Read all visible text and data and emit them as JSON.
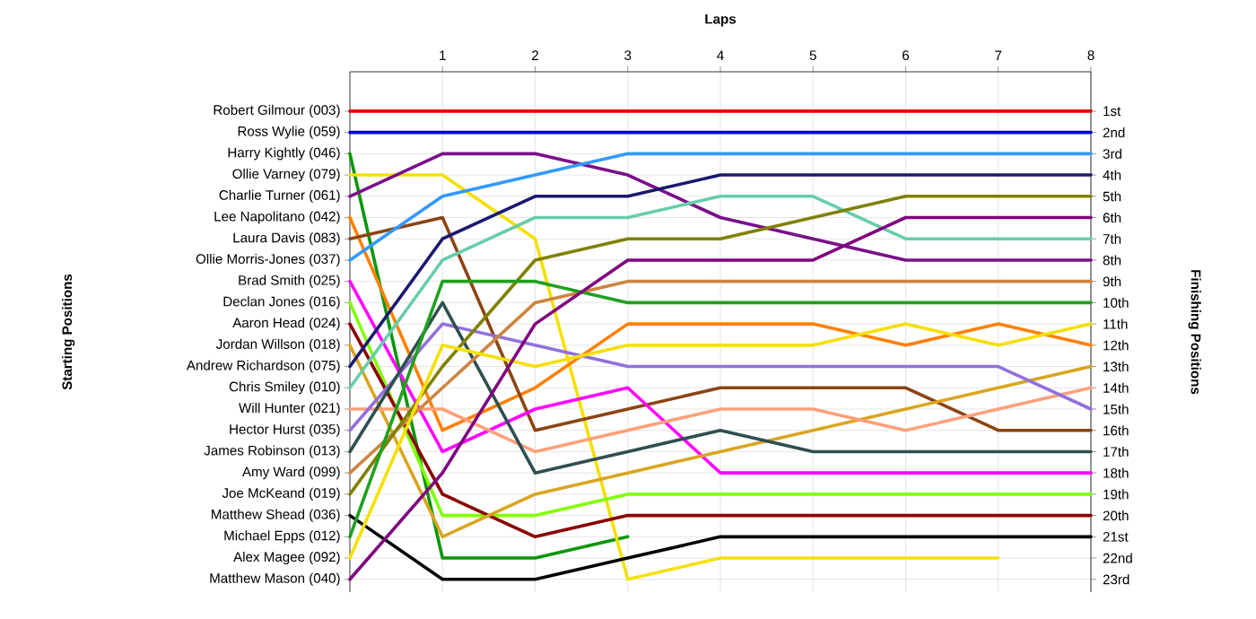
{
  "chart_data": {
    "type": "line",
    "xlabel": "Laps",
    "y2label": "Finishing Positions",
    "x": [
      0,
      1,
      2,
      3,
      4,
      5,
      6,
      7,
      8
    ],
    "xlim": [
      0,
      8
    ],
    "xticks": [
      1,
      2,
      3,
      4,
      5,
      6,
      7,
      8
    ],
    "y2lim": [
      23.6,
      -0.85
    ],
    "grid": true,
    "y2ticks": [
      {
        "value": 1,
        "label": "1st"
      },
      {
        "value": 2,
        "label": "2nd"
      },
      {
        "value": 3,
        "label": "3rd"
      },
      {
        "value": 4,
        "label": "4th"
      },
      {
        "value": 5,
        "label": "5th"
      },
      {
        "value": 6,
        "label": "6th"
      },
      {
        "value": 7,
        "label": "7th"
      },
      {
        "value": 8,
        "label": "8th"
      },
      {
        "value": 9,
        "label": "9th"
      },
      {
        "value": 10,
        "label": "10th"
      },
      {
        "value": 11,
        "label": "11th"
      },
      {
        "value": 12,
        "label": "12th"
      },
      {
        "value": 13,
        "label": "13th"
      },
      {
        "value": 14,
        "label": "14th"
      },
      {
        "value": 15,
        "label": "15th"
      },
      {
        "value": 16,
        "label": "16th"
      },
      {
        "value": 17,
        "label": "17th"
      },
      {
        "value": 18,
        "label": "18th"
      },
      {
        "value": 19,
        "label": "19th"
      },
      {
        "value": 20,
        "label": "20th"
      },
      {
        "value": 21,
        "label": "21st"
      },
      {
        "value": 22,
        "label": "22nd"
      },
      {
        "value": 23,
        "label": "23rd"
      }
    ],
    "annotations": [
      "Robert Gilmour (003)",
      "Ross Wylie (059)",
      "Harry Kightly (046)",
      "Ollie Varney (079)",
      "Charlie Turner (061)",
      "Lee Napolitano (042)",
      "Laura Davis (083)",
      "Ollie Morris-Jones (037)",
      "Brad Smith (025)",
      "Declan Jones (016)",
      "Aaron Head (024)",
      "Jordan Willson (018)",
      "Andrew Richardson (075)",
      "Chris Smiley (010)",
      "Will Hunter (021)",
      "Hector Hurst (035)",
      "James Robinson (013)",
      "Amy Ward (099)",
      "Joe McKeand (019)",
      "Matthew Shead (036)",
      "Michael Epps (012)",
      "Alex Magee (092)",
      "Matthew Mason (040)",
      "Starting Positions"
    ],
    "series": [
      {
        "axis": "y2",
        "color": "#e60000",
        "values": [
          1,
          1,
          1,
          1,
          1,
          1,
          1,
          1,
          1
        ]
      },
      {
        "axis": "y2",
        "color": "#0000c8",
        "values": [
          2,
          2,
          2,
          2,
          2,
          2,
          2,
          2,
          2
        ]
      },
      {
        "axis": "y2",
        "color": "#0a960a",
        "values": [
          3,
          22,
          22,
          21,
          null,
          null,
          null,
          null,
          null
        ]
      },
      {
        "axis": "y2",
        "color": "#f5e000",
        "values": [
          4,
          4,
          7,
          23,
          22,
          22,
          22,
          22,
          null
        ]
      },
      {
        "axis": "y2",
        "color": "#7a0f8a",
        "values": [
          5,
          3,
          3,
          4,
          6,
          7,
          8,
          8,
          8
        ]
      },
      {
        "axis": "y2",
        "color": "#ff8000",
        "values": [
          6,
          16,
          14,
          11,
          11,
          11,
          12,
          11,
          12
        ]
      },
      {
        "axis": "y2",
        "color": "#8b4513",
        "values": [
          7,
          6,
          16,
          15,
          14,
          14,
          14,
          16,
          16
        ]
      },
      {
        "axis": "y2",
        "color": "#3399ff",
        "values": [
          8,
          5,
          4,
          3,
          3,
          3,
          3,
          3,
          3
        ]
      },
      {
        "axis": "y2",
        "color": "#ff00ff",
        "values": [
          9,
          17,
          15,
          14,
          18,
          18,
          18,
          18,
          18
        ]
      },
      {
        "axis": "y2",
        "color": "#80ff00",
        "values": [
          10,
          20,
          20,
          19,
          19,
          19,
          19,
          19,
          19
        ]
      },
      {
        "axis": "y2",
        "color": "#8b0000",
        "values": [
          11,
          19,
          21,
          20,
          20,
          20,
          20,
          20,
          20
        ]
      },
      {
        "axis": "y2",
        "color": "#daa520",
        "values": [
          12,
          21,
          19,
          18,
          17,
          16,
          15,
          14,
          13
        ]
      },
      {
        "axis": "y2",
        "color": "#191970",
        "values": [
          13,
          7,
          5,
          5,
          4,
          4,
          4,
          4,
          4
        ]
      },
      {
        "axis": "y2",
        "color": "#66cdaa",
        "values": [
          14,
          8,
          6,
          6,
          5,
          5,
          7,
          7,
          7
        ]
      },
      {
        "axis": "y2",
        "color": "#ffa07a",
        "values": [
          15,
          15,
          17,
          16,
          15,
          15,
          16,
          15,
          14
        ]
      },
      {
        "axis": "y2",
        "color": "#9370db",
        "values": [
          16,
          11,
          12,
          13,
          13,
          13,
          13,
          13,
          15
        ]
      },
      {
        "axis": "y2",
        "color": "#2f4f4f",
        "values": [
          17,
          10,
          18,
          17,
          16,
          17,
          17,
          17,
          17
        ]
      },
      {
        "axis": "y2",
        "color": "#cd853f",
        "values": [
          18,
          14,
          10,
          9,
          9,
          9,
          9,
          9,
          9
        ]
      },
      {
        "axis": "y2",
        "color": "#808000",
        "values": [
          19,
          13,
          8,
          7,
          7,
          6,
          5,
          5,
          5
        ]
      },
      {
        "axis": "y2",
        "color": "#000000",
        "values": [
          20,
          23,
          23,
          22,
          21,
          21,
          21,
          21,
          21
        ]
      },
      {
        "axis": "y2",
        "color": "#20a020",
        "values": [
          21,
          9,
          9,
          10,
          10,
          10,
          10,
          10,
          10
        ]
      },
      {
        "axis": "y2",
        "color": "#f5e000",
        "values": [
          22,
          12,
          13,
          12,
          12,
          12,
          11,
          12,
          11
        ]
      },
      {
        "axis": "y2",
        "color": "#800080",
        "values": [
          23,
          18,
          11,
          8,
          8,
          8,
          6,
          6,
          6
        ]
      }
    ]
  }
}
